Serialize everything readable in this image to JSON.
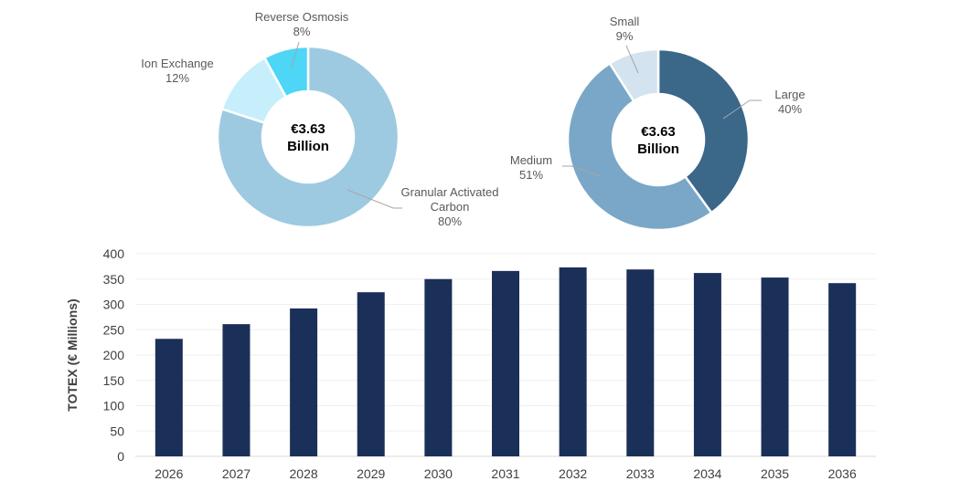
{
  "chart_data": [
    {
      "type": "pie",
      "center_label": [
        "€3.63",
        "Billion"
      ],
      "slices": [
        {
          "name": "Granular Activated Carbon",
          "label": [
            "Granular Activated",
            "Carbon"
          ],
          "pct_label": "80%",
          "value": 80,
          "color": "#9ECAE1"
        },
        {
          "name": "Ion Exchange",
          "label": [
            "Ion Exchange"
          ],
          "pct_label": "12%",
          "value": 12,
          "color": "#C6EFFB"
        },
        {
          "name": "Reverse Osmosis",
          "label": [
            "Reverse Osmosis"
          ],
          "pct_label": "8%",
          "value": 8,
          "color": "#4DD6F5"
        }
      ]
    },
    {
      "type": "pie",
      "center_label": [
        "€3.63",
        "Billion"
      ],
      "slices": [
        {
          "name": "Large",
          "label": [
            "Large"
          ],
          "pct_label": "40%",
          "value": 40,
          "color": "#3B6789"
        },
        {
          "name": "Medium",
          "label": [
            "Medium"
          ],
          "pct_label": "51%",
          "value": 51,
          "color": "#7AA7C7"
        },
        {
          "name": "Small",
          "label": [
            "Small"
          ],
          "pct_label": "9%",
          "value": 9,
          "color": "#D3E3EF"
        }
      ]
    },
    {
      "type": "bar",
      "categories": [
        "2026",
        "2027",
        "2028",
        "2029",
        "2030",
        "2031",
        "2032",
        "2033",
        "2034",
        "2035",
        "2036"
      ],
      "values": [
        232,
        261,
        292,
        324,
        350,
        366,
        373,
        369,
        362,
        353,
        342
      ],
      "ylabel": "TOTEX (€ Millions)",
      "ylim": [
        0,
        400
      ],
      "yticks": [
        "0",
        "50",
        "100",
        "150",
        "200",
        "250",
        "300",
        "350",
        "400"
      ],
      "grid": true,
      "color": "#1B3059"
    }
  ]
}
